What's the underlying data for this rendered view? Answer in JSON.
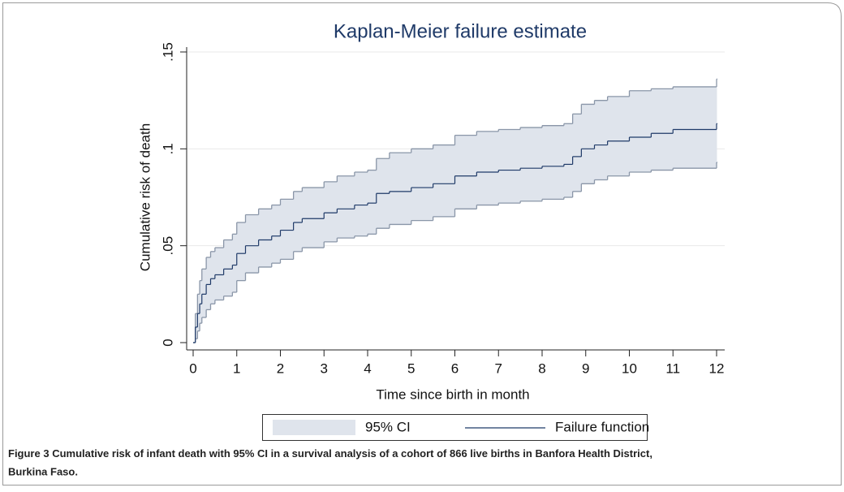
{
  "chart_data": {
    "type": "kaplan-meier",
    "title": "Kaplan-Meier failure estimate",
    "x_label": "Time since birth in month",
    "y_label": "Cumulative risk of death",
    "x": [
      0,
      0.05,
      0.1,
      0.15,
      0.2,
      0.3,
      0.4,
      0.5,
      0.7,
      0.9,
      1.0,
      1.2,
      1.5,
      1.8,
      2.0,
      2.3,
      2.5,
      3.0,
      3.3,
      3.7,
      4.0,
      4.2,
      4.5,
      5.0,
      5.5,
      6.0,
      6.5,
      7.0,
      7.5,
      8.0,
      8.5,
      8.7,
      8.9,
      9.2,
      9.5,
      10.0,
      10.5,
      11.0,
      12.0
    ],
    "series": [
      {
        "name": "95% CI",
        "color": "#dfe4ec",
        "edge_color": "#8a96a8",
        "lower": [
          0,
          0.002,
          0.006,
          0.01,
          0.013,
          0.017,
          0.02,
          0.022,
          0.024,
          0.026,
          0.032,
          0.036,
          0.039,
          0.041,
          0.043,
          0.047,
          0.049,
          0.052,
          0.054,
          0.055,
          0.056,
          0.059,
          0.061,
          0.063,
          0.065,
          0.069,
          0.071,
          0.072,
          0.073,
          0.074,
          0.075,
          0.078,
          0.082,
          0.084,
          0.086,
          0.088,
          0.089,
          0.09,
          0.093
        ],
        "upper": [
          0,
          0.015,
          0.025,
          0.032,
          0.038,
          0.044,
          0.047,
          0.049,
          0.053,
          0.056,
          0.062,
          0.066,
          0.069,
          0.071,
          0.074,
          0.078,
          0.08,
          0.083,
          0.086,
          0.088,
          0.089,
          0.095,
          0.098,
          0.1,
          0.102,
          0.107,
          0.109,
          0.11,
          0.111,
          0.112,
          0.113,
          0.118,
          0.123,
          0.125,
          0.127,
          0.13,
          0.131,
          0.132,
          0.136
        ]
      },
      {
        "name": "Failure function",
        "color": "#1f3a68",
        "values": [
          0,
          0.008,
          0.015,
          0.02,
          0.025,
          0.03,
          0.033,
          0.035,
          0.038,
          0.04,
          0.046,
          0.05,
          0.053,
          0.055,
          0.058,
          0.062,
          0.064,
          0.067,
          0.069,
          0.071,
          0.072,
          0.077,
          0.078,
          0.08,
          0.082,
          0.086,
          0.088,
          0.089,
          0.09,
          0.091,
          0.092,
          0.096,
          0.1,
          0.102,
          0.104,
          0.106,
          0.108,
          0.11,
          0.113
        ]
      }
    ],
    "xlim": [
      0,
      12
    ],
    "xticks": [
      0,
      1,
      2,
      3,
      4,
      5,
      6,
      7,
      8,
      9,
      10,
      11,
      12
    ],
    "ylim": [
      0,
      0.15
    ],
    "yticks": [
      0,
      {
        "value": 0.05,
        "label": ".05"
      },
      {
        "value": 0.1,
        "label": ".1"
      },
      {
        "value": 0.15,
        "label": ".15"
      }
    ],
    "grid": true,
    "caption_label": "Figure 3",
    "caption": "Cumulative risk of infant death with 95% CI in a survival analysis of a cohort of 866 live births in Banfora Health District,",
    "caption_cont": "Burkina Faso."
  }
}
